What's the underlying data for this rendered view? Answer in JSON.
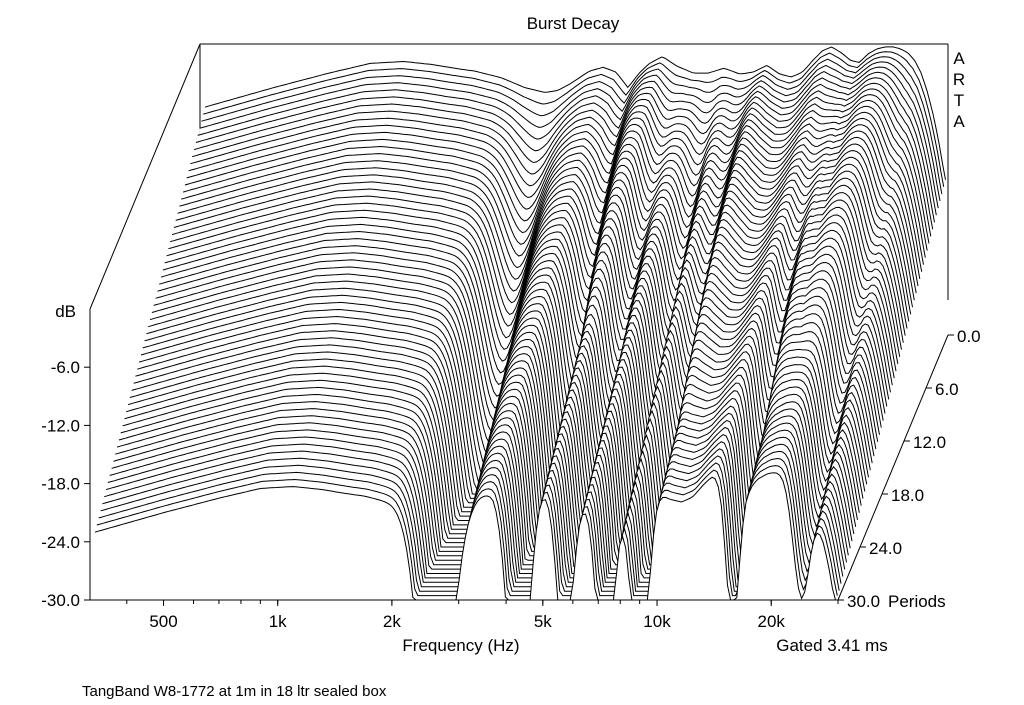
{
  "chart_data": {
    "type": "waterfall",
    "title": "Burst Decay",
    "xlabel": "Frequency (Hz)",
    "ylabel": "dB",
    "zlabel": "Periods",
    "brand": [
      "A",
      "R",
      "T",
      "A"
    ],
    "gate_note": "Gated 3.41 ms",
    "footnote": "TangBand W8-1772 at 1m in 18 ltr sealed box",
    "x_scale": "log",
    "x_ticks": [
      {
        "label": "500",
        "value": 500
      },
      {
        "label": "1k",
        "value": 1000
      },
      {
        "label": "2k",
        "value": 2000
      },
      {
        "label": "5k",
        "value": 5000
      },
      {
        "label": "10k",
        "value": 10000
      },
      {
        "label": "20k",
        "value": 20000
      }
    ],
    "xlim": [
      320,
      30000
    ],
    "ylim": [
      -30,
      0
    ],
    "y_ticks": [
      {
        "label": "-6.0",
        "value": -6
      },
      {
        "label": "-12.0",
        "value": -12
      },
      {
        "label": "-18.0",
        "value": -18
      },
      {
        "label": "-24.0",
        "value": -24
      },
      {
        "label": "-30.0",
        "value": -30
      }
    ],
    "z_ticks": [
      {
        "label": "0.0",
        "value": 0
      },
      {
        "label": "6.0",
        "value": 6
      },
      {
        "label": "12.0",
        "value": 12
      },
      {
        "label": "18.0",
        "value": 18
      },
      {
        "label": "24.0",
        "value": 24
      },
      {
        "label": "30.0",
        "value": 30
      }
    ],
    "zlim": [
      0,
      30
    ],
    "slice_count": 60,
    "initial_response": {
      "freq": [
        330,
        500,
        700,
        900,
        1100,
        1300,
        1500,
        1700,
        2000,
        2300,
        2600,
        2800,
        3000,
        3400,
        3700,
        4000,
        4300,
        4600,
        4900,
        5300,
        5800,
        6400,
        7000,
        7700,
        8500,
        9200,
        10000,
        10800,
        11600,
        12400,
        13200,
        14000,
        14800,
        15700,
        16600,
        17500,
        18500,
        19500,
        20500,
        21500,
        22500,
        23500,
        24500,
        25500,
        26500,
        27500,
        28500,
        29500
      ],
      "db": [
        -6.5,
        -4.5,
        -3.0,
        -2.0,
        -1.8,
        -2.1,
        -2.5,
        -2.8,
        -3.5,
        -4.5,
        -5.0,
        -4.8,
        -4.2,
        -2.8,
        -2.4,
        -2.9,
        -4.5,
        -3.0,
        -2.0,
        -1.3,
        -2.3,
        -3.0,
        -3.0,
        -2.5,
        -3.1,
        -2.9,
        -2.2,
        -3.1,
        -3.4,
        -2.9,
        -1.7,
        -0.7,
        -0.3,
        -0.9,
        -1.7,
        -1.9,
        -1.0,
        -0.5,
        -0.3,
        -0.3,
        -0.5,
        -0.9,
        -1.7,
        -3.0,
        -5.0,
        -7.5,
        -10.5,
        -14.0
      ]
    },
    "decay_notches": [
      {
        "freq": 2600,
        "db_per_period": 0.95,
        "width_oct": 0.18
      },
      {
        "freq": 4300,
        "db_per_period": 0.8,
        "width_oct": 0.12
      },
      {
        "freq": 5700,
        "db_per_period": 0.55,
        "width_oct": 0.1
      },
      {
        "freq": 7300,
        "db_per_period": 0.7,
        "width_oct": 0.1
      },
      {
        "freq": 9000,
        "db_per_period": 0.65,
        "width_oct": 0.1
      },
      {
        "freq": 15800,
        "db_per_period": 0.5,
        "width_oct": 0.08
      },
      {
        "freq": 24000,
        "db_per_period": 0.4,
        "width_oct": 0.1
      }
    ],
    "resonances": [
      {
        "freq": 4800,
        "sustain_periods": 18
      },
      {
        "freq": 10000,
        "sustain_periods": 24
      },
      {
        "freq": 16500,
        "sustain_periods": 25
      },
      {
        "freq": 20500,
        "sustain_periods": 22
      }
    ],
    "colors": {
      "line": "#000000",
      "fill": "#ffffff",
      "axis": "#000000"
    }
  }
}
